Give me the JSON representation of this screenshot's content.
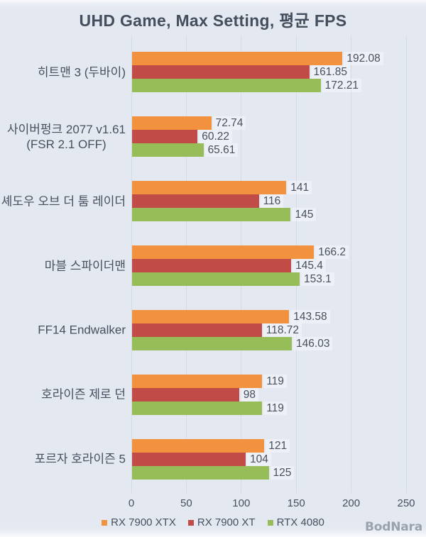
{
  "watermark": "BodNara",
  "chart_data": {
    "type": "bar",
    "orientation": "horizontal",
    "title": "UHD Game, Max Setting, 평균 FPS",
    "categories": [
      "히트맨 3 (두바이)",
      "사이버펑크 2077 v1.61\n(FSR 2.1 OFF)",
      "셰도우 오브 더 툼 레이더",
      "마블 스파이더맨",
      "FF14 Endwalker",
      "호라이즌 제로 던",
      "포르자 호라이즌 5"
    ],
    "series": [
      {
        "name": "RX 7900 XTX",
        "color": "#f2923e",
        "values": [
          192.08,
          72.74,
          141,
          166.2,
          143.58,
          119,
          121
        ]
      },
      {
        "name": "RX 7900 XT",
        "color": "#c14b47",
        "values": [
          161.85,
          60.22,
          116,
          145.4,
          118.72,
          98,
          104
        ]
      },
      {
        "name": "RTX 4080",
        "color": "#97bd58",
        "values": [
          172.21,
          65.61,
          145,
          153.1,
          146.03,
          119,
          125
        ]
      }
    ],
    "xlim": [
      0,
      250
    ],
    "xticks": [
      0,
      50,
      100,
      150,
      200,
      250
    ],
    "grid": true,
    "legend_position": "bottom",
    "value_labels": true,
    "background_color": "#e3e8f1",
    "gridline_color": "#d5dbe6",
    "text_color": "#47505e"
  }
}
